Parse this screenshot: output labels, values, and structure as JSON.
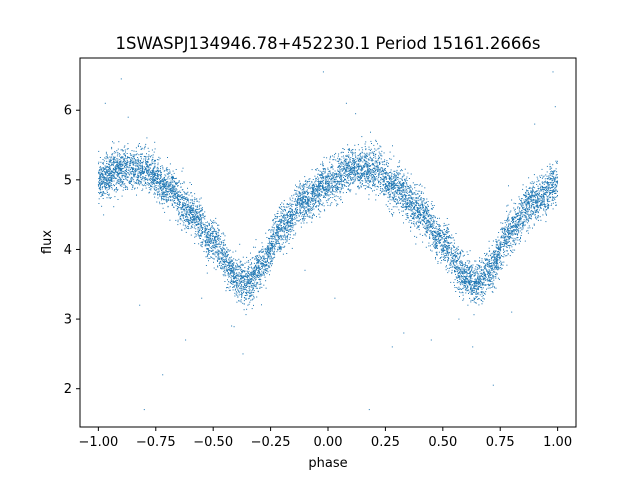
{
  "chart_data": {
    "type": "scatter",
    "title": "1SWASPJ134946.78+452230.1 Period 15161.2666s",
    "xlabel": "phase",
    "ylabel": "flux",
    "xlim": [
      -1.08,
      1.08
    ],
    "ylim": [
      1.45,
      6.75
    ],
    "grid": false,
    "color": "#1f77b4",
    "x_ticks": [
      -1.0,
      -0.75,
      -0.5,
      -0.25,
      0.0,
      0.25,
      0.5,
      0.75,
      1.0
    ],
    "x_tick_labels": [
      "−1.00",
      "−0.75",
      "−0.50",
      "−0.25",
      "0.00",
      "0.25",
      "0.50",
      "0.75",
      "1.00"
    ],
    "y_ticks": [
      2,
      3,
      4,
      5,
      6
    ],
    "y_tick_labels": [
      "2",
      "3",
      "4",
      "5",
      "6"
    ],
    "light_curve": {
      "phase": [
        -1.0,
        -0.9,
        -0.8,
        -0.7,
        -0.6,
        -0.5,
        -0.4,
        -0.35,
        -0.3,
        -0.2,
        -0.1,
        0.0,
        0.1,
        0.2,
        0.3,
        0.4,
        0.5,
        0.6,
        0.65,
        0.7,
        0.8,
        0.9,
        1.0
      ],
      "flux": [
        5.0,
        5.15,
        5.15,
        4.9,
        4.55,
        4.1,
        3.6,
        3.5,
        3.7,
        4.3,
        4.7,
        4.95,
        5.15,
        5.15,
        4.9,
        4.55,
        4.1,
        3.6,
        3.5,
        3.7,
        4.3,
        4.7,
        4.95
      ],
      "scatter_sigma": 0.15,
      "n_points": 9000
    },
    "outliers": {
      "x": [
        -0.97,
        -0.9,
        -0.87,
        -0.82,
        -0.78,
        -0.72,
        -0.8,
        -0.62,
        -0.55,
        -0.42,
        -0.37,
        -0.1,
        -0.02,
        0.08,
        0.12,
        0.18,
        0.28,
        0.33,
        0.57,
        0.63,
        0.72,
        0.8,
        0.9,
        0.98,
        0.99,
        0.45,
        -0.33,
        0.03
      ],
      "y": [
        6.1,
        6.45,
        5.9,
        3.2,
        5.3,
        2.2,
        1.7,
        2.7,
        3.3,
        2.9,
        2.5,
        3.7,
        6.55,
        6.1,
        5.95,
        1.7,
        2.6,
        2.8,
        3.0,
        2.6,
        2.05,
        3.1,
        5.8,
        6.55,
        6.05,
        2.7,
        3.15,
        3.3
      ]
    }
  }
}
